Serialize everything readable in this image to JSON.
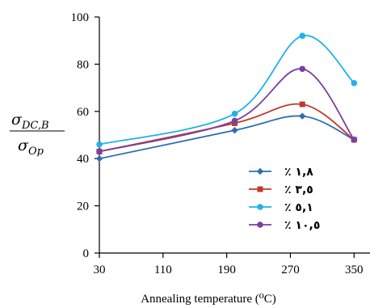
{
  "chart_data": {
    "type": "line",
    "x": [
      30,
      200,
      285,
      350
    ],
    "xlabel": "Annealing temperature (⁰C)",
    "ylabel": {
      "numerator_base": "σ",
      "numerator_sub": "DC,B",
      "denominator_base": "σ",
      "denominator_sub": "Op"
    },
    "xlim": [
      30,
      370
    ],
    "ylim": [
      0,
      100
    ],
    "x_ticks": [
      30,
      110,
      190,
      270,
      350
    ],
    "y_ticks": [
      0,
      20,
      40,
      60,
      80,
      100
    ],
    "grid": false,
    "legend_position": "bottom-right",
    "smooth": true,
    "series": [
      {
        "name": "٪ ١,٨",
        "color": "#2f6db5",
        "marker": "diamond",
        "values": [
          40,
          52,
          58,
          48
        ]
      },
      {
        "name": "٪ ٣,٥",
        "color": "#c0392b",
        "marker": "square",
        "values": [
          43,
          55,
          63,
          48
        ]
      },
      {
        "name": "٪ ٥,١",
        "color": "#1fb3e8",
        "marker": "circle",
        "values": [
          46,
          59,
          92,
          72
        ]
      },
      {
        "name": "٪ ١٠,٥",
        "color": "#7b3f9e",
        "marker": "circle",
        "values": [
          43,
          56,
          78,
          48
        ]
      }
    ]
  }
}
